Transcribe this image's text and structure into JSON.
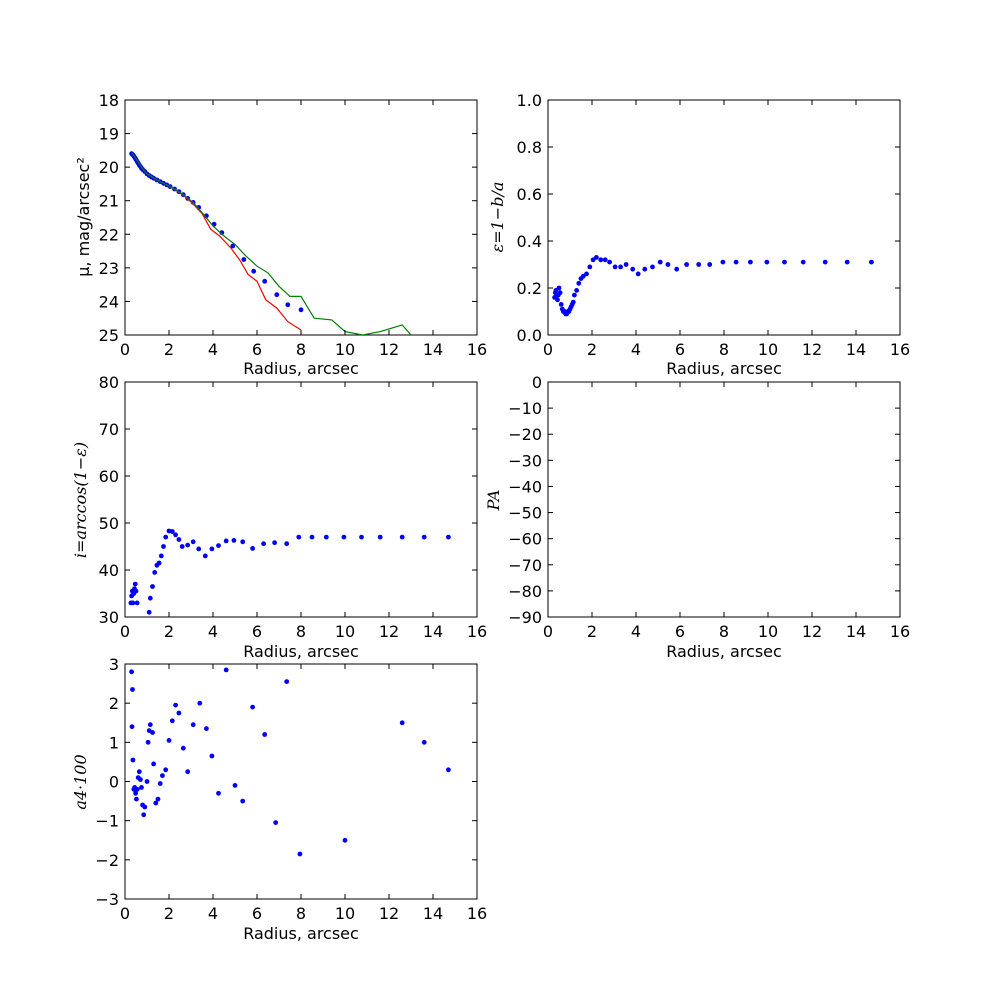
{
  "figure": {
    "background": "#ffffff"
  },
  "chart_data": [
    {
      "id": "sb",
      "type": "scatter",
      "xlabel": "Radius, arcsec",
      "ylabel": "μ, mag/arcsec²",
      "xlim": [
        0,
        16
      ],
      "ylim": [
        25,
        18
      ],
      "y_inverted": true,
      "xticks": [
        0,
        2,
        4,
        6,
        8,
        10,
        12,
        14,
        16
      ],
      "yticks": [
        18,
        19,
        20,
        21,
        22,
        23,
        24,
        25
      ],
      "series": [
        {
          "kind": "points",
          "color": "#0000ff",
          "x": [
            0.3,
            0.35,
            0.4,
            0.45,
            0.5,
            0.55,
            0.6,
            0.65,
            0.7,
            0.75,
            0.8,
            0.9,
            1.0,
            1.1,
            1.2,
            1.3,
            1.45,
            1.6,
            1.75,
            1.9,
            2.05,
            2.25,
            2.45,
            2.65,
            2.85,
            3.1,
            3.35,
            3.7,
            4.05,
            4.4,
            4.9,
            5.4,
            5.85,
            6.35,
            6.9,
            7.4,
            8.0
          ],
          "y": [
            19.6,
            19.63,
            19.67,
            19.72,
            19.77,
            19.83,
            19.88,
            19.94,
            19.98,
            20.03,
            20.07,
            20.13,
            20.2,
            20.25,
            20.29,
            20.33,
            20.38,
            20.43,
            20.48,
            20.53,
            20.58,
            20.65,
            20.73,
            20.82,
            20.93,
            21.05,
            21.2,
            21.45,
            21.7,
            21.95,
            22.35,
            22.75,
            23.1,
            23.4,
            23.8,
            24.1,
            24.25
          ]
        },
        {
          "kind": "line",
          "color": "#ff0000",
          "x": [
            0.3,
            0.5,
            0.8,
            1.0,
            1.3,
            1.6,
            1.9,
            2.2,
            2.5,
            2.8,
            3.1,
            3.5,
            3.9,
            4.3,
            4.8,
            5.2,
            5.6,
            6.0,
            6.4,
            6.9,
            7.4,
            8.0
          ],
          "y": [
            19.57,
            19.75,
            20.05,
            20.2,
            20.32,
            20.43,
            20.53,
            20.64,
            20.77,
            20.92,
            21.1,
            21.38,
            21.85,
            22.05,
            22.4,
            22.75,
            23.2,
            23.4,
            23.95,
            24.2,
            24.6,
            24.85
          ]
        },
        {
          "kind": "line",
          "color": "#008000",
          "x": [
            0.3,
            0.5,
            0.8,
            1.0,
            1.3,
            1.6,
            1.9,
            2.2,
            2.5,
            2.8,
            3.1,
            3.5,
            4.0,
            4.5,
            5.0,
            5.5,
            6.0,
            6.5,
            7.0,
            7.5,
            8.0,
            8.6,
            9.4,
            10.0,
            10.8,
            11.6,
            12.6,
            13.0
          ],
          "y": [
            19.57,
            19.75,
            20.05,
            20.2,
            20.32,
            20.43,
            20.53,
            20.63,
            20.75,
            20.9,
            21.05,
            21.35,
            21.75,
            22.05,
            22.3,
            22.65,
            22.95,
            23.15,
            23.55,
            23.85,
            23.85,
            24.5,
            24.55,
            24.9,
            25.0,
            24.9,
            24.7,
            25.0
          ]
        }
      ]
    },
    {
      "id": "ell",
      "type": "scatter",
      "xlabel": "Radius, arcsec",
      "ylabel": "ε=1−b/a",
      "xlim": [
        0,
        16
      ],
      "ylim": [
        0.0,
        1.0
      ],
      "xticks": [
        0,
        2,
        4,
        6,
        8,
        10,
        12,
        14,
        16
      ],
      "yticks": [
        "0.0",
        "0.2",
        "0.4",
        "0.6",
        "0.8",
        "1.0"
      ],
      "series": [
        {
          "kind": "points",
          "color": "#0000ff",
          "x": [
            0.3,
            0.33,
            0.36,
            0.4,
            0.43,
            0.47,
            0.5,
            0.55,
            0.6,
            0.65,
            0.7,
            0.75,
            0.8,
            0.85,
            0.9,
            0.95,
            1.0,
            1.05,
            1.1,
            1.15,
            1.2,
            1.3,
            1.4,
            1.5,
            1.6,
            1.75,
            1.9,
            2.05,
            2.2,
            2.4,
            2.6,
            2.8,
            3.05,
            3.3,
            3.55,
            3.85,
            4.1,
            4.4,
            4.75,
            5.1,
            5.45,
            5.85,
            6.3,
            6.85,
            7.35,
            7.95,
            8.55,
            9.2,
            9.95,
            10.75,
            11.6,
            12.6,
            13.6,
            14.7
          ],
          "y": [
            0.16,
            0.18,
            0.19,
            0.17,
            0.15,
            0.17,
            0.2,
            0.18,
            0.13,
            0.11,
            0.1,
            0.1,
            0.09,
            0.09,
            0.1,
            0.1,
            0.11,
            0.12,
            0.13,
            0.14,
            0.17,
            0.19,
            0.22,
            0.24,
            0.25,
            0.26,
            0.29,
            0.32,
            0.33,
            0.32,
            0.32,
            0.31,
            0.29,
            0.29,
            0.3,
            0.28,
            0.26,
            0.28,
            0.29,
            0.31,
            0.3,
            0.28,
            0.3,
            0.3,
            0.3,
            0.31,
            0.31,
            0.31,
            0.31,
            0.31,
            0.31,
            0.31,
            0.31,
            0.31
          ]
        }
      ]
    },
    {
      "id": "inc",
      "type": "scatter",
      "xlabel": "Radius, arcsec",
      "ylabel": "i=arccos(1−ε)",
      "xlim": [
        0,
        16
      ],
      "ylim": [
        30,
        80
      ],
      "xticks": [
        0,
        2,
        4,
        6,
        8,
        10,
        12,
        14,
        16
      ],
      "yticks": [
        30,
        40,
        50,
        60,
        70,
        80
      ],
      "series": [
        {
          "kind": "points",
          "color": "#0000ff",
          "x": [
            0.27,
            0.3,
            0.33,
            0.36,
            0.4,
            0.43,
            0.47,
            0.5,
            0.55,
            1.1,
            1.15,
            1.25,
            1.35,
            1.45,
            1.55,
            1.65,
            1.75,
            1.85,
            2.0,
            2.15,
            2.3,
            2.45,
            2.6,
            2.85,
            3.1,
            3.35,
            3.65,
            3.95,
            4.25,
            4.6,
            4.95,
            5.35,
            5.8,
            6.3,
            6.8,
            7.35,
            7.9,
            8.5,
            9.15,
            9.95,
            10.75,
            11.6,
            12.6,
            13.6,
            14.7
          ],
          "y": [
            33,
            34.5,
            35.5,
            33,
            35,
            36,
            37,
            35.5,
            33,
            31,
            34,
            36.5,
            39.5,
            41,
            41.5,
            43,
            45,
            47,
            48.3,
            48.2,
            47.5,
            46.5,
            45,
            45.3,
            46,
            44.5,
            43,
            44.5,
            45.2,
            46.2,
            46.3,
            46,
            44.6,
            45.6,
            45.8,
            45.6,
            47,
            47,
            47,
            47,
            47,
            47,
            47,
            47,
            47
          ]
        }
      ]
    },
    {
      "id": "pa",
      "type": "scatter",
      "xlabel": "Radius, arcsec",
      "ylabel": "PA",
      "xlim": [
        0,
        16
      ],
      "ylim": [
        -90,
        0
      ],
      "xticks": [
        0,
        2,
        4,
        6,
        8,
        10,
        12,
        14,
        16
      ],
      "yticks": [
        0,
        -10,
        -20,
        -30,
        -40,
        -50,
        -60,
        -70,
        -80,
        -90
      ],
      "series": []
    },
    {
      "id": "a4",
      "type": "scatter",
      "xlabel": "Radius, arcsec",
      "ylabel": "a4·100",
      "xlim": [
        0,
        16
      ],
      "ylim": [
        -3,
        3
      ],
      "xticks": [
        0,
        2,
        4,
        6,
        8,
        10,
        12,
        14,
        16
      ],
      "yticks": [
        -3,
        -2,
        -1,
        0,
        1,
        2,
        3
      ],
      "series": [
        {
          "kind": "points",
          "color": "#0000ff",
          "x": [
            0.3,
            0.32,
            0.34,
            0.36,
            0.4,
            0.44,
            0.48,
            0.52,
            0.56,
            0.6,
            0.65,
            0.7,
            0.75,
            0.8,
            0.85,
            0.9,
            1.0,
            1.05,
            1.1,
            1.15,
            1.25,
            1.3,
            1.4,
            1.5,
            1.6,
            1.7,
            1.85,
            2.0,
            2.15,
            2.3,
            2.45,
            2.65,
            2.85,
            3.1,
            3.4,
            3.7,
            3.95,
            4.25,
            4.6,
            5.0,
            5.35,
            5.8,
            6.35,
            6.85,
            7.35,
            7.95,
            10.0,
            12.6,
            13.6,
            14.7
          ],
          "y": [
            2.8,
            1.4,
            2.35,
            0.55,
            -0.2,
            -0.15,
            -0.3,
            -0.45,
            -0.2,
            0.1,
            0.25,
            0.05,
            -0.15,
            -0.6,
            -0.85,
            -0.65,
            0.0,
            1.0,
            1.3,
            1.45,
            1.25,
            0.45,
            -0.55,
            -0.45,
            -0.05,
            0.15,
            0.3,
            1.05,
            1.55,
            1.95,
            1.75,
            0.85,
            0.25,
            1.45,
            2.0,
            1.35,
            0.65,
            -0.3,
            2.85,
            -0.1,
            -0.5,
            1.9,
            1.2,
            -1.05,
            2.55,
            -1.85,
            -1.5,
            1.5,
            1.0,
            0.3
          ]
        }
      ]
    }
  ]
}
